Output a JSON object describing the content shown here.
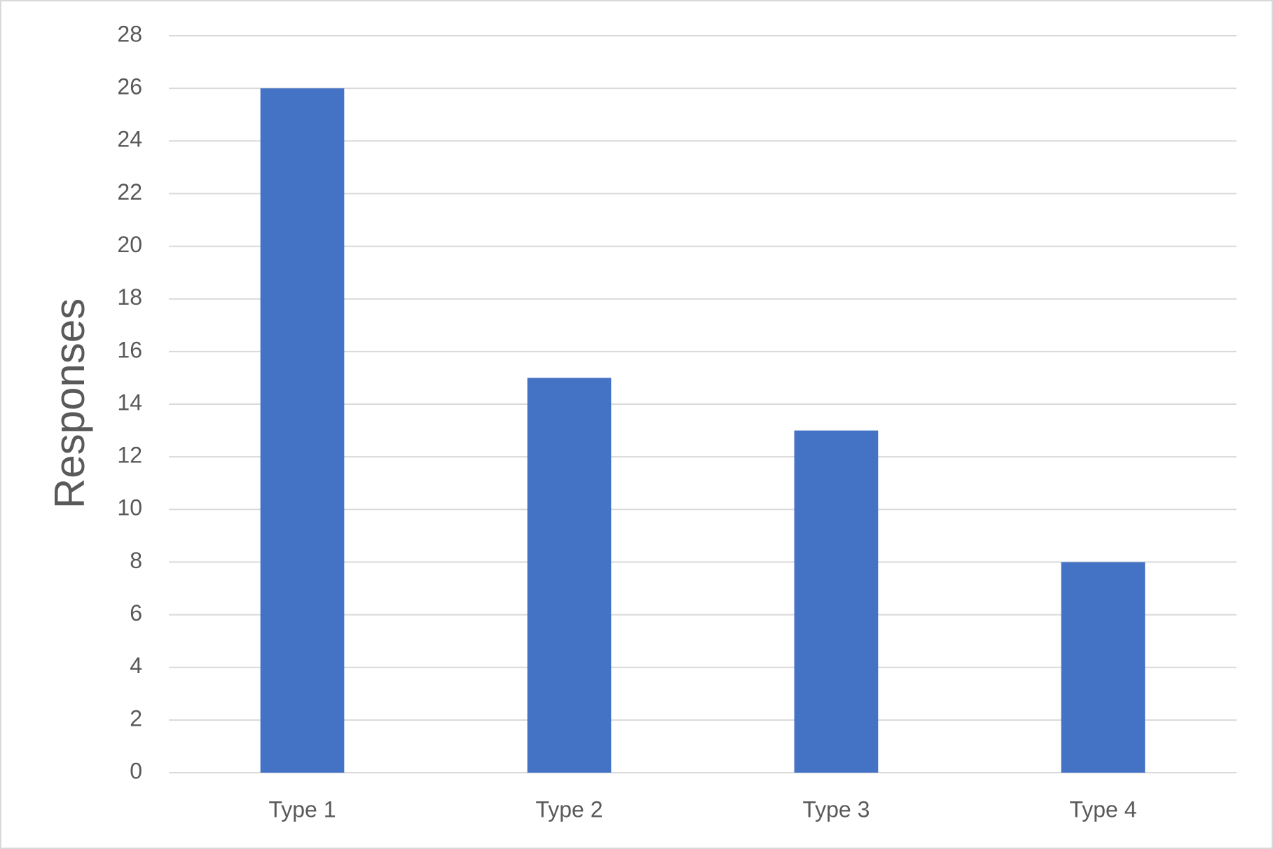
{
  "chart_data": {
    "type": "bar",
    "y_label": "Responses",
    "categories": [
      "Type 1",
      "Type 2",
      "Type 3",
      "Type 4"
    ],
    "values": [
      26,
      15,
      13,
      8
    ],
    "color": "#4472c4",
    "ylim": [
      0,
      28
    ],
    "yticks": [
      0,
      2,
      4,
      6,
      8,
      10,
      12,
      14,
      16,
      18,
      20,
      22,
      24,
      26,
      28
    ],
    "grid": true
  }
}
